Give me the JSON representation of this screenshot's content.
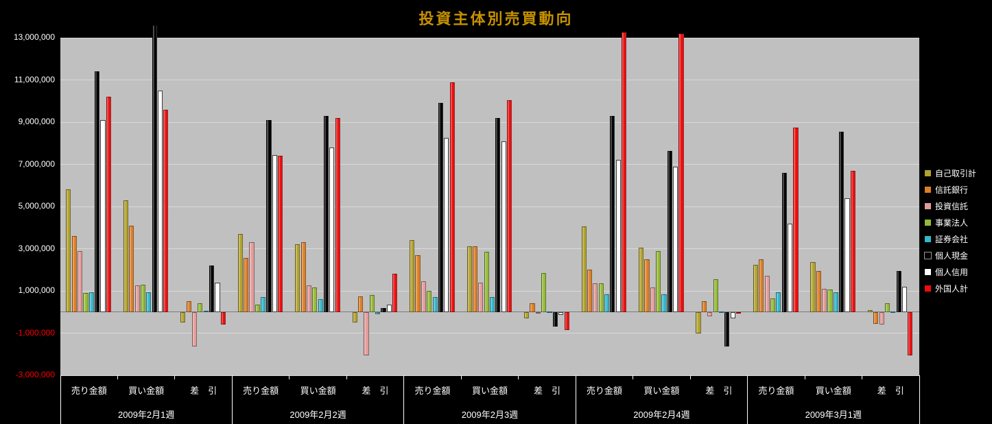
{
  "colors": {
    "background": "#000000",
    "plot_background": "#C0C0C0",
    "title": "#C79200",
    "axis_text": "#FFFFFF",
    "negative_tick_text": "#FF0000",
    "gridline": "#D9D9D9"
  },
  "chart_data": {
    "type": "bar",
    "title": "投資主体別売買動向",
    "ylim": [
      -3000000,
      13000000
    ],
    "ytick_step": 2000000,
    "grid": true,
    "legend_position": "right",
    "yticks": [
      {
        "value": 13000000,
        "label": "13,000,000"
      },
      {
        "value": 11000000,
        "label": "11,000,000"
      },
      {
        "value": 9000000,
        "label": "9,000,000"
      },
      {
        "value": 7000000,
        "label": "7,000,000"
      },
      {
        "value": 5000000,
        "label": "5,000,000"
      },
      {
        "value": 3000000,
        "label": "3,000,000"
      },
      {
        "value": 1000000,
        "label": "1,000,000"
      },
      {
        "value": -1000000,
        "label": "-1,000,000"
      },
      {
        "value": -3000000,
        "label": "-3,000,000"
      }
    ],
    "weeks": [
      "2009年2月1週",
      "2009年2月2週",
      "2009年2月3週",
      "2009年2月4週",
      "2009年3月1週"
    ],
    "categories_per_week": [
      "売り金額",
      "買い金額",
      "差　引"
    ],
    "group_order_note": "values are 15 groups: for each week in order — 売り金額, 買い金額, 差引",
    "series": [
      {
        "name": "自己取引計",
        "color": "#B2A22B",
        "values": [
          5800000,
          5300000,
          -500000,
          3700000,
          3200000,
          -500000,
          3400000,
          3100000,
          -300000,
          4050000,
          3050000,
          -1000000,
          2250000,
          2350000,
          100000
        ]
      },
      {
        "name": "信託銀行",
        "color": "#DE7E23",
        "values": [
          3600000,
          4100000,
          500000,
          2550000,
          3300000,
          750000,
          2700000,
          3100000,
          400000,
          2000000,
          2500000,
          500000,
          2500000,
          1950000,
          -550000
        ]
      },
      {
        "name": "投資信託",
        "color": "#E49A9A",
        "values": [
          2900000,
          1250000,
          -1650000,
          3300000,
          1250000,
          -2050000,
          1450000,
          1400000,
          -50000,
          1350000,
          1150000,
          -200000,
          1700000,
          1100000,
          -600000
        ]
      },
      {
        "name": "事業法人",
        "color": "#94BB33",
        "values": [
          900000,
          1300000,
          400000,
          350000,
          1150000,
          800000,
          1000000,
          2850000,
          1850000,
          1350000,
          2900000,
          1550000,
          650000,
          1050000,
          400000
        ]
      },
      {
        "name": "証券会社",
        "color": "#31B8CB",
        "values": [
          950000,
          950000,
          50000,
          700000,
          600000,
          -100000,
          700000,
          700000,
          0,
          850000,
          850000,
          0,
          950000,
          950000,
          0
        ]
      },
      {
        "name": "個人現金",
        "color": "#000000",
        "values": [
          11400000,
          13600000,
          2200000,
          9100000,
          9300000,
          200000,
          9900000,
          9200000,
          -700000,
          9300000,
          7650000,
          -1650000,
          6600000,
          8550000,
          1950000
        ]
      },
      {
        "name": "個人信用",
        "color": "#FFFFFF",
        "values": [
          9100000,
          10500000,
          1400000,
          7450000,
          7800000,
          350000,
          8250000,
          8100000,
          -150000,
          7200000,
          6900000,
          -300000,
          4200000,
          5400000,
          1200000
        ]
      },
      {
        "name": "外国人計",
        "color": "#EE0C0C",
        "values": [
          10200000,
          9600000,
          -600000,
          7400000,
          9200000,
          1800000,
          10900000,
          10050000,
          -850000,
          13250000,
          13200000,
          -50000,
          8750000,
          6700000,
          -2050000
        ]
      }
    ]
  }
}
